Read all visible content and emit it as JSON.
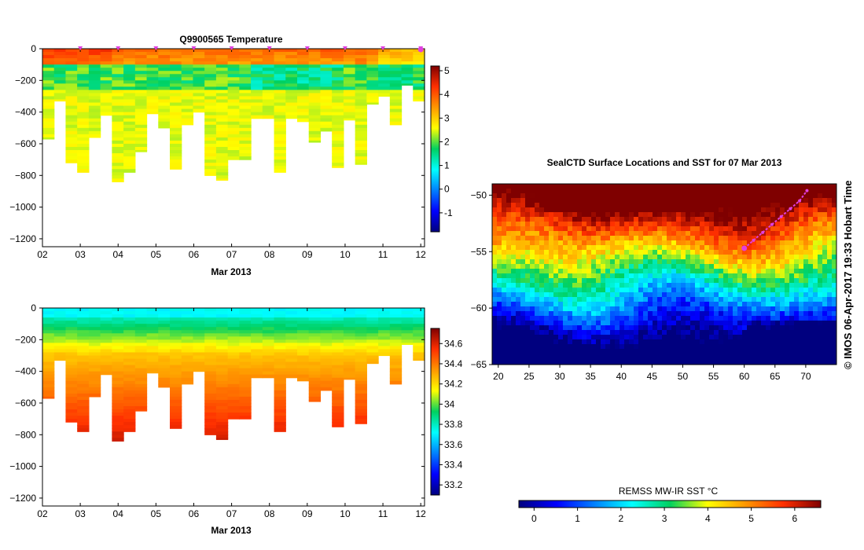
{
  "chart_data": [
    {
      "id": "temperature",
      "type": "heatmap",
      "title": "Q9900565  Temperature",
      "xlabel": "Mar 2013",
      "ylabel": "",
      "x_ticks": [
        "02",
        "03",
        "04",
        "05",
        "06",
        "07",
        "08",
        "09",
        "10",
        "11",
        "12"
      ],
      "y_ticks": [
        0,
        -200,
        -400,
        -600,
        -800,
        -1000,
        -1200
      ],
      "xlim": [
        2,
        12.1
      ],
      "ylim": [
        -1250,
        0
      ],
      "colorbar": {
        "ticks": [
          "5",
          "4",
          "3",
          "2",
          "1",
          "0",
          "-1"
        ],
        "range": [
          -1.8,
          5.2
        ]
      },
      "profile_depths": [
        570,
        330,
        720,
        780,
        560,
        420,
        840,
        780,
        650,
        410,
        500,
        760,
        480,
        400,
        800,
        830,
        700,
        700,
        440,
        440,
        780,
        440,
        460,
        590,
        520,
        750,
        450,
        730,
        350,
        300,
        480,
        230,
        330
      ],
      "surface_markers_day": [
        3.0,
        4.0,
        5.0,
        6.0,
        7.0,
        8.0,
        9.0,
        10.0,
        11.0,
        12.0
      ]
    },
    {
      "id": "salinity",
      "type": "heatmap",
      "title": "",
      "xlabel": "Mar 2013",
      "ylabel": "",
      "x_ticks": [
        "02",
        "03",
        "04",
        "05",
        "06",
        "07",
        "08",
        "09",
        "10",
        "11",
        "12"
      ],
      "y_ticks": [
        0,
        -200,
        -400,
        -600,
        -800,
        -1000,
        -1200
      ],
      "xlim": [
        2,
        12.1
      ],
      "ylim": [
        -1250,
        0
      ],
      "colorbar": {
        "ticks": [
          "34.6",
          "34.4",
          "34.2",
          "34",
          "33.8",
          "33.6",
          "33.4",
          "33.2"
        ],
        "range": [
          33.1,
          34.75
        ]
      },
      "profile_depths": [
        570,
        330,
        720,
        780,
        560,
        420,
        840,
        780,
        650,
        410,
        500,
        760,
        480,
        400,
        800,
        830,
        700,
        700,
        440,
        440,
        780,
        440,
        460,
        590,
        520,
        750,
        450,
        730,
        350,
        300,
        480,
        230,
        330
      ]
    },
    {
      "id": "sst_map",
      "type": "heatmap",
      "title": "SealCTD Surface Locations and SST for 07 Mar 2013",
      "x_ticks": [
        "20",
        "25",
        "30",
        "35",
        "40",
        "45",
        "50",
        "55",
        "60",
        "65",
        "70"
      ],
      "y_ticks": [
        "-50",
        "-55",
        "-60",
        "-65"
      ],
      "xlim": [
        19,
        75
      ],
      "ylim": [
        -65,
        -49
      ],
      "colorbar_label": "REMSS MW-IR SST °C",
      "colorbar_ticks": [
        "0",
        "1",
        "2",
        "3",
        "4",
        "5",
        "6"
      ],
      "colorbar_range": [
        -0.35,
        6.6
      ],
      "track": [
        [
          60.0,
          -54.7
        ],
        [
          61.5,
          -54.0
        ],
        [
          63.0,
          -53.3
        ],
        [
          64.5,
          -52.6
        ],
        [
          66.0,
          -51.9
        ],
        [
          67.5,
          -51.2
        ],
        [
          69.0,
          -50.5
        ],
        [
          70.2,
          -49.6
        ]
      ]
    }
  ],
  "side_caption": "© IMOS 06-Apr-2017 19:33 Hobart Time",
  "colors": {
    "marker": "#e040e0",
    "frame": "#000000"
  }
}
